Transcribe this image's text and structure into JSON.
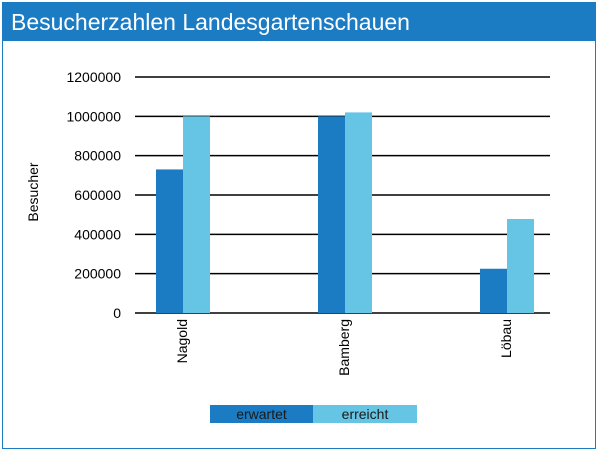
{
  "title": "Besucherzahlen Landesgartenschauen",
  "colors": {
    "header": "#1b7cc4",
    "erwartet": "#1b7cc4",
    "erreicht": "#66c4e5",
    "grid": "#000000"
  },
  "chart_data": {
    "type": "bar",
    "title": "Besucherzahlen Landesgartenschauen",
    "xlabel": "",
    "ylabel": "Besucher",
    "categories": [
      "Nagold",
      "Bamberg",
      "Löbau"
    ],
    "series": [
      {
        "name": "erwartet",
        "values": [
          730000,
          1000000,
          225000
        ]
      },
      {
        "name": "erreicht",
        "values": [
          1000000,
          1020000,
          478000
        ]
      }
    ],
    "ylim": [
      0,
      1200000
    ],
    "yticks": [
      "0",
      "200000",
      "400000",
      "600000",
      "800000",
      "1000000",
      "1200000"
    ],
    "grid": true,
    "legend": "bottom"
  }
}
